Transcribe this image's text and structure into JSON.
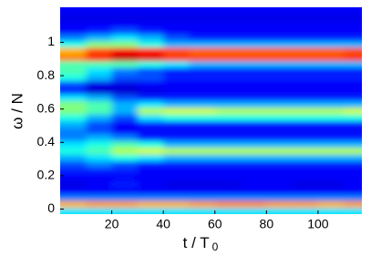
{
  "chart_data": {
    "type": "heatmap",
    "colormap": "jet",
    "clim": [
      0,
      1
    ],
    "xlabel": "t / T",
    "xlabel_subscript": "0",
    "ylabel": "ω / N",
    "xlim": [
      0,
      117
    ],
    "ylim": [
      -0.03,
      1.21
    ],
    "xticks": [
      20,
      40,
      60,
      80,
      100
    ],
    "yticks": [
      0,
      0.2,
      0.4,
      0.6,
      0.8,
      1
    ],
    "xbins": [
      0,
      10,
      20,
      30,
      40,
      50,
      60,
      70,
      80,
      90,
      100,
      110,
      117
    ],
    "ybins": [
      -0.03,
      0.01,
      0.05,
      0.09,
      0.13,
      0.17,
      0.21,
      0.25,
      0.29,
      0.33,
      0.37,
      0.41,
      0.45,
      0.49,
      0.53,
      0.57,
      0.61,
      0.65,
      0.69,
      0.73,
      0.77,
      0.81,
      0.85,
      0.89,
      0.93,
      0.97,
      1.01,
      1.05,
      1.09,
      1.13,
      1.17,
      1.21
    ],
    "values": [
      [
        0.35,
        0.35,
        0.35,
        0.35,
        0.35,
        0.35,
        0.35,
        0.35,
        0.35,
        0.35,
        0.35,
        0.35
      ],
      [
        0.7,
        0.72,
        0.72,
        0.7,
        0.7,
        0.72,
        0.74,
        0.74,
        0.72,
        0.72,
        0.7,
        0.72
      ],
      [
        0.25,
        0.25,
        0.25,
        0.25,
        0.25,
        0.25,
        0.25,
        0.25,
        0.25,
        0.25,
        0.25,
        0.25
      ],
      [
        0.12,
        0.12,
        0.12,
        0.12,
        0.12,
        0.12,
        0.12,
        0.12,
        0.12,
        0.12,
        0.12,
        0.12
      ],
      [
        0.1,
        0.12,
        0.15,
        0.12,
        0.1,
        0.1,
        0.1,
        0.12,
        0.12,
        0.1,
        0.1,
        0.12
      ],
      [
        0.12,
        0.12,
        0.12,
        0.12,
        0.12,
        0.12,
        0.12,
        0.12,
        0.12,
        0.12,
        0.12,
        0.12
      ],
      [
        0.15,
        0.15,
        0.15,
        0.12,
        0.12,
        0.12,
        0.12,
        0.12,
        0.12,
        0.12,
        0.12,
        0.12
      ],
      [
        0.2,
        0.25,
        0.2,
        0.15,
        0.15,
        0.15,
        0.15,
        0.15,
        0.15,
        0.15,
        0.15,
        0.15
      ],
      [
        0.3,
        0.35,
        0.4,
        0.35,
        0.3,
        0.3,
        0.3,
        0.3,
        0.3,
        0.3,
        0.3,
        0.3
      ],
      [
        0.4,
        0.45,
        0.55,
        0.58,
        0.55,
        0.55,
        0.55,
        0.55,
        0.55,
        0.55,
        0.55,
        0.55
      ],
      [
        0.35,
        0.4,
        0.45,
        0.4,
        0.3,
        0.3,
        0.3,
        0.3,
        0.3,
        0.3,
        0.3,
        0.3
      ],
      [
        0.25,
        0.3,
        0.25,
        0.15,
        0.15,
        0.15,
        0.15,
        0.15,
        0.15,
        0.15,
        0.15,
        0.15
      ],
      [
        0.25,
        0.2,
        0.12,
        0.12,
        0.12,
        0.12,
        0.12,
        0.12,
        0.12,
        0.12,
        0.12,
        0.12
      ],
      [
        0.3,
        0.2,
        0.12,
        0.15,
        0.15,
        0.15,
        0.15,
        0.15,
        0.15,
        0.15,
        0.15,
        0.15
      ],
      [
        0.4,
        0.3,
        0.2,
        0.35,
        0.4,
        0.4,
        0.4,
        0.4,
        0.4,
        0.4,
        0.4,
        0.4
      ],
      [
        0.5,
        0.45,
        0.3,
        0.55,
        0.58,
        0.58,
        0.55,
        0.55,
        0.55,
        0.55,
        0.55,
        0.58
      ],
      [
        0.5,
        0.45,
        0.3,
        0.35,
        0.3,
        0.3,
        0.3,
        0.3,
        0.3,
        0.3,
        0.3,
        0.3
      ],
      [
        0.35,
        0.3,
        0.2,
        0.15,
        0.15,
        0.15,
        0.15,
        0.15,
        0.15,
        0.15,
        0.15,
        0.15
      ],
      [
        0.15,
        0.08,
        0.08,
        0.1,
        0.12,
        0.12,
        0.12,
        0.12,
        0.12,
        0.12,
        0.12,
        0.12
      ],
      [
        0.2,
        0.1,
        0.1,
        0.12,
        0.12,
        0.12,
        0.12,
        0.12,
        0.12,
        0.12,
        0.12,
        0.12
      ],
      [
        0.4,
        0.3,
        0.2,
        0.2,
        0.15,
        0.15,
        0.15,
        0.15,
        0.15,
        0.15,
        0.15,
        0.15
      ],
      [
        0.45,
        0.35,
        0.25,
        0.2,
        0.15,
        0.15,
        0.15,
        0.15,
        0.15,
        0.15,
        0.15,
        0.15
      ],
      [
        0.45,
        0.45,
        0.45,
        0.4,
        0.35,
        0.3,
        0.3,
        0.3,
        0.3,
        0.3,
        0.3,
        0.3
      ],
      [
        0.75,
        0.85,
        0.93,
        0.9,
        0.82,
        0.8,
        0.8,
        0.8,
        0.8,
        0.8,
        0.8,
        0.82
      ],
      [
        0.7,
        0.8,
        0.88,
        0.85,
        0.8,
        0.78,
        0.78,
        0.78,
        0.78,
        0.78,
        0.78,
        0.8
      ],
      [
        0.4,
        0.5,
        0.5,
        0.4,
        0.3,
        0.3,
        0.3,
        0.3,
        0.3,
        0.3,
        0.3,
        0.3
      ],
      [
        0.25,
        0.3,
        0.35,
        0.3,
        0.2,
        0.15,
        0.15,
        0.15,
        0.15,
        0.15,
        0.15,
        0.15
      ],
      [
        0.12,
        0.15,
        0.2,
        0.15,
        0.12,
        0.12,
        0.12,
        0.12,
        0.12,
        0.12,
        0.12,
        0.12
      ],
      [
        0.12,
        0.12,
        0.12,
        0.12,
        0.12,
        0.12,
        0.12,
        0.12,
        0.12,
        0.12,
        0.12,
        0.12
      ],
      [
        0.1,
        0.1,
        0.1,
        0.1,
        0.1,
        0.1,
        0.1,
        0.1,
        0.1,
        0.1,
        0.1,
        0.1
      ],
      [
        0.12,
        0.12,
        0.12,
        0.12,
        0.12,
        0.12,
        0.12,
        0.12,
        0.12,
        0.12,
        0.12,
        0.12
      ]
    ]
  }
}
